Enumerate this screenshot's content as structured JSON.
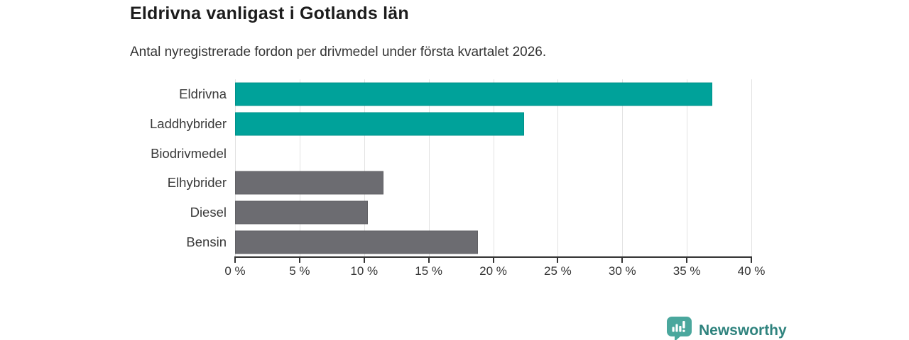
{
  "header": {
    "title": "Eldrivna vanligast i Gotlands län",
    "subtitle": "Antal nyregistrerade fordon per drivmedel under första kvartalet 2026."
  },
  "chart_data": {
    "type": "bar",
    "orientation": "horizontal",
    "title": "Eldrivna vanligast i Gotlands län",
    "subtitle": "Antal nyregistrerade fordon per drivmedel under första kvartalet 2026.",
    "categories": [
      "Eldrivna",
      "Laddhybrider",
      "Biodrivmedel",
      "Elhybrider",
      "Diesel",
      "Bensin"
    ],
    "values": [
      37.0,
      22.4,
      0,
      11.5,
      10.3,
      18.8
    ],
    "unit": "%",
    "bar_colors": [
      "#00a29a",
      "#00a29a",
      "#00a29a",
      "#6c6c71",
      "#6c6c71",
      "#6c6c71"
    ],
    "xlabel": "",
    "ylabel": "",
    "xlim": [
      0,
      40
    ],
    "x_tick_values": [
      0,
      5,
      10,
      15,
      20,
      25,
      30,
      35,
      40
    ],
    "x_tick_labels": [
      "0 %",
      "5 %",
      "10 %",
      "15 %",
      "20 %",
      "25 %",
      "30 %",
      "35 %",
      "40 %"
    ],
    "grid": true,
    "legend": false,
    "colors": {
      "highlight": "#00a29a",
      "default": "#6c6c71",
      "gridline": "#e2e2e2",
      "axis": "#333333"
    }
  },
  "footer": {
    "brand": "Newsworthy",
    "brand_text_color": "#2f837e",
    "logo_color": "#4aa79d"
  }
}
